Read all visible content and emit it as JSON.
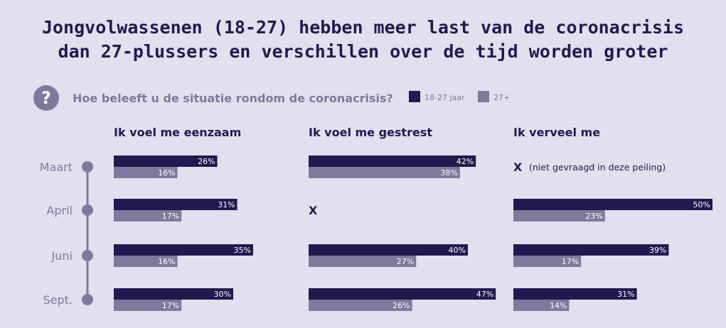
{
  "title_line1": "Jongvolwassenen (18-27) hebben meer last van de coronacrisis",
  "title_line2": "dan 27-plussers en verschillen over de tijd worden groter",
  "question": "Hoe beleeft u de situatie rondom de coronacrisis?",
  "question_icon": "question-mark-icon",
  "missing_note": "(niet gevraagd in deze peiling)",
  "colors": {
    "background": "#e3dfee",
    "dark": "#22194f",
    "light": "#7d7a9c"
  },
  "chart_data": {
    "type": "bar",
    "orientation": "horizontal",
    "categories": [
      "Maart",
      "April",
      "Juni",
      "Sept."
    ],
    "unit": "%",
    "series_names": [
      "18-27 jaar",
      "27+"
    ],
    "panels": [
      {
        "title": "Ik voel me eenzaam",
        "series": [
          {
            "name": "18-27 jaar",
            "values": [
              26,
              31,
              35,
              30
            ]
          },
          {
            "name": "27+",
            "values": [
              16,
              17,
              16,
              17
            ]
          }
        ]
      },
      {
        "title": "Ik voel me gestrest",
        "missing_mark": "X",
        "series": [
          {
            "name": "18-27 jaar",
            "values": [
              42,
              null,
              40,
              47
            ]
          },
          {
            "name": "27+",
            "values": [
              38,
              null,
              27,
              26
            ]
          }
        ]
      },
      {
        "title": "Ik verveel me",
        "missing_mark": "X",
        "series": [
          {
            "name": "18-27 jaar",
            "values": [
              null,
              50,
              39,
              31
            ]
          },
          {
            "name": "27+",
            "values": [
              null,
              23,
              17,
              14
            ]
          }
        ]
      }
    ],
    "legend_position": "top-right",
    "grid": false
  }
}
